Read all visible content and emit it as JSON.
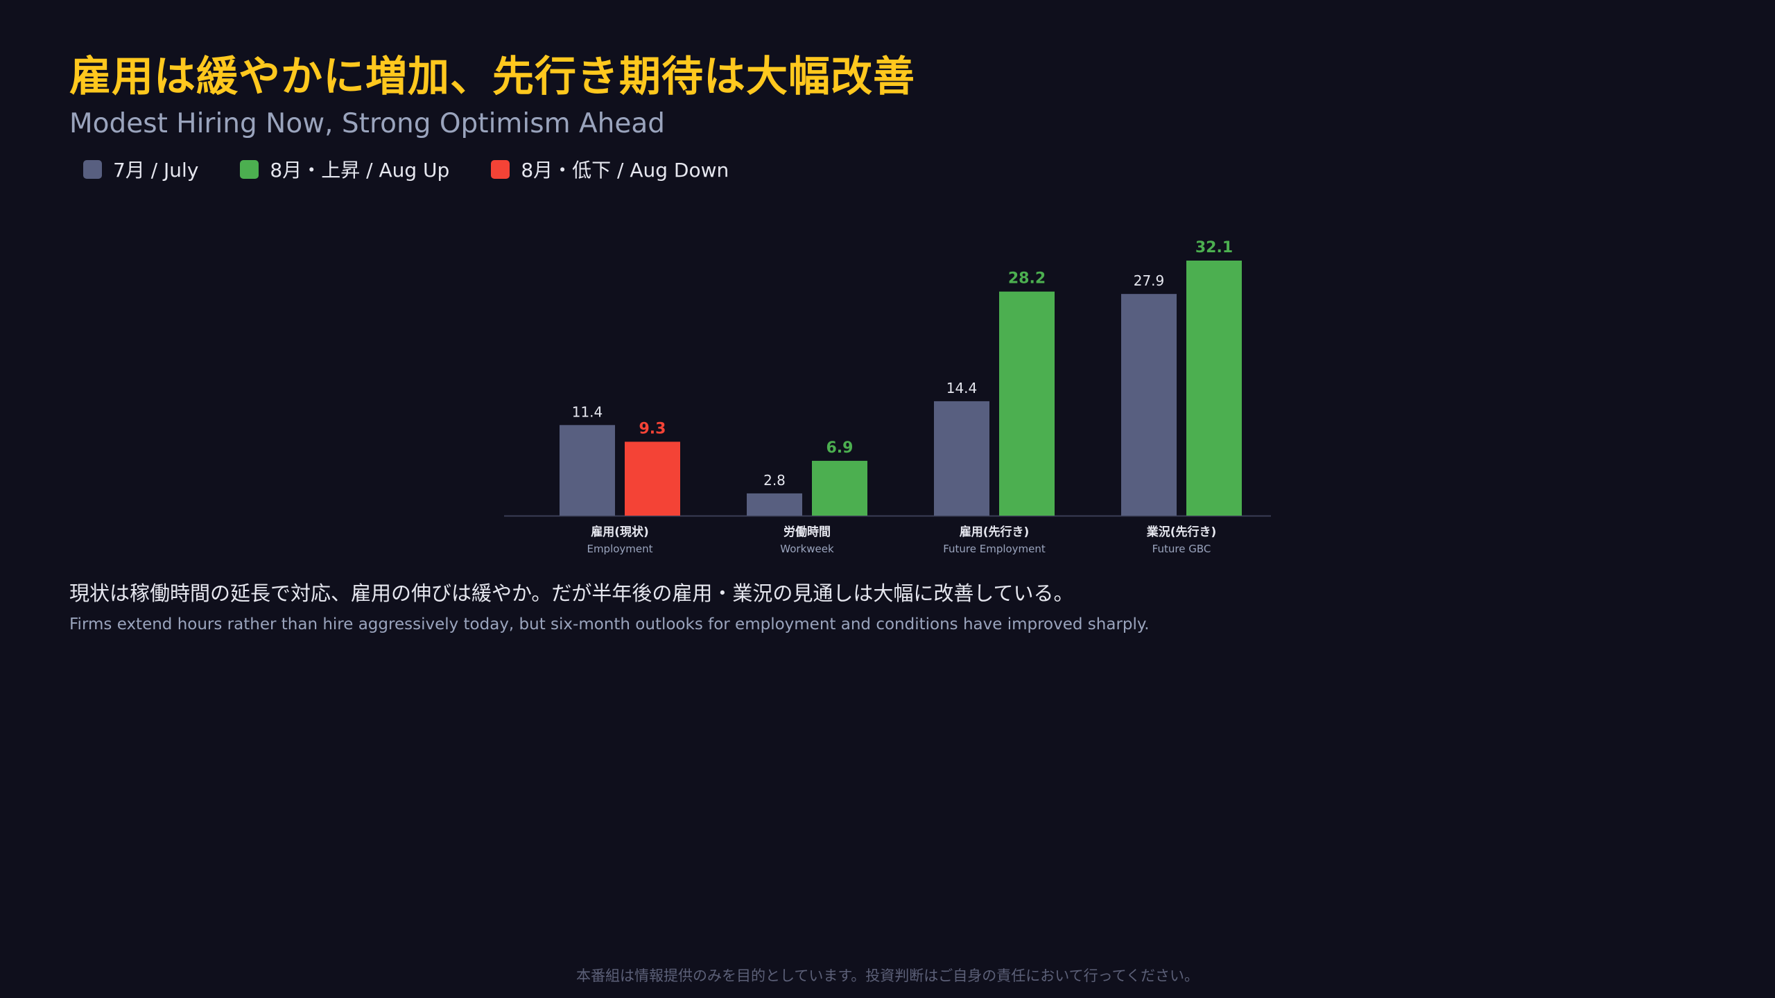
{
  "title": "雇用は緩やかに増加、先行き期待は大幅改善",
  "subtitle": "Modest Hiring Now, Strong Optimism Ahead",
  "legend": [
    {
      "label": "7月 / July",
      "color": "#585f80"
    },
    {
      "label": "8月・上昇 / Aug Up",
      "color": "#4caf50"
    },
    {
      "label": "8月・低下 / Aug Down",
      "color": "#f44336"
    }
  ],
  "chart_data": {
    "type": "bar",
    "categories": [
      "雇用(現状)",
      "労働時間",
      "雇用(先行き)",
      "業況(先行き)"
    ],
    "category_sublabels": [
      "Employment",
      "Workweek",
      "Future Employment",
      "Future GBC"
    ],
    "series": [
      {
        "name": "7月 / July",
        "values": [
          11.4,
          2.8,
          14.4,
          27.9
        ]
      },
      {
        "name": "8月 / Aug",
        "values": [
          9.3,
          6.9,
          28.2,
          32.1
        ],
        "direction": [
          "down",
          "up",
          "up",
          "up"
        ]
      }
    ],
    "ylim": [
      0,
      33
    ],
    "grid": false,
    "legend_position": "top-left",
    "colors": {
      "july": "#585f80",
      "up": "#4caf50",
      "down": "#f44336"
    }
  },
  "summary_jp": "現状は稼働時間の延長で対応、雇用の伸びは緩やか。だが半年後の雇用・業況の見通しは大幅に改善している。",
  "summary_en": "Firms extend hours rather than hire aggressively today, but six-month outlooks for employment and conditions have improved sharply.",
  "disclaimer": "本番組は情報提供のみを目的としています。投資判断はご自身の責任において行ってください。"
}
